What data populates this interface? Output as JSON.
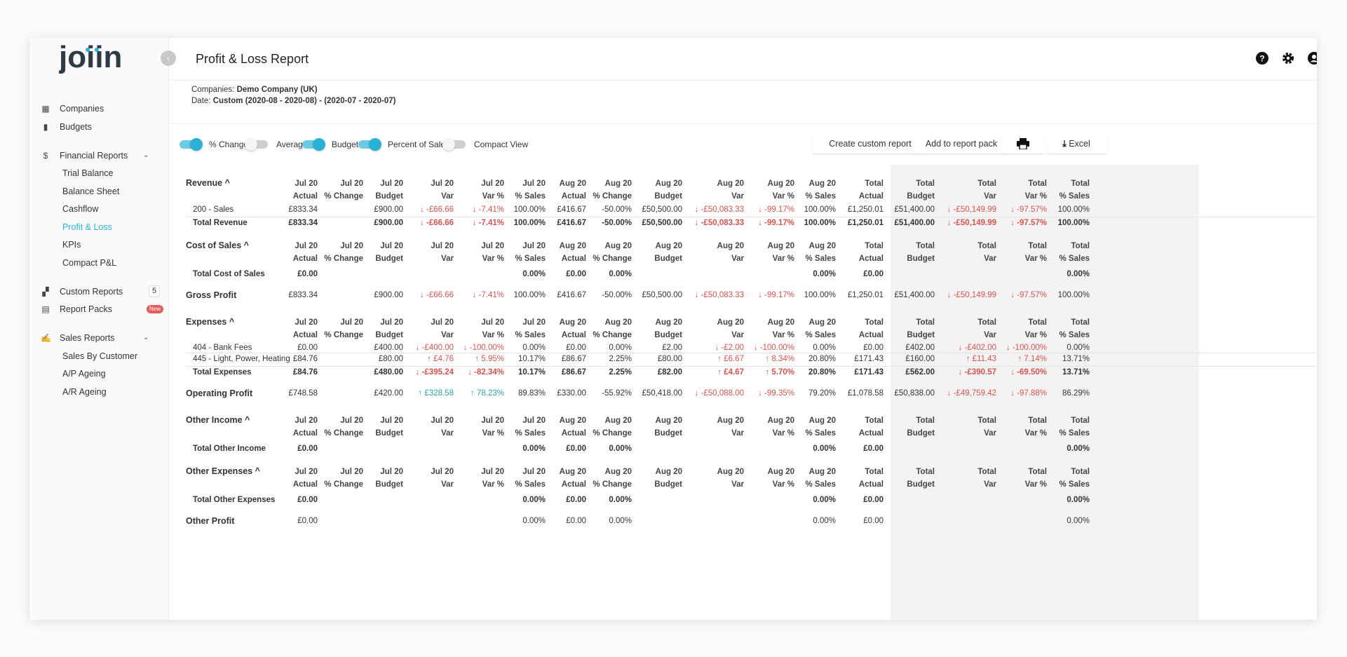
{
  "app": {
    "brand": "joiin",
    "title": "Profit & Loss Report",
    "companies_label": "Companies:",
    "companies_value": "Demo Company (UK)",
    "date_label": "Date:",
    "date_value": "Custom (2020-08 - 2020-08) - (2020-07 - 2020-07)"
  },
  "sidebar": {
    "companies": "Companies",
    "budgets": "Budgets",
    "financial_reports": "Financial Reports",
    "trial_balance": "Trial Balance",
    "balance_sheet": "Balance Sheet",
    "cashflow": "Cashflow",
    "profit_loss": "Profit & Loss",
    "kpis": "KPIs",
    "compact_pl": "Compact P&L",
    "custom_reports": "Custom Reports",
    "custom_reports_count": "5",
    "report_packs": "Report Packs",
    "report_packs_badge": "New",
    "sales_reports": "Sales Reports",
    "sales_by_customer": "Sales By Customer",
    "ap_ageing": "A/P Ageing",
    "ar_ageing": "A/R Ageing"
  },
  "toggles": [
    {
      "label": "% Change",
      "on": true
    },
    {
      "label": "Average",
      "on": false
    },
    {
      "label": "Budget",
      "on": true
    },
    {
      "label": "Percent of Sales",
      "on": true
    },
    {
      "label": "Compact View",
      "on": false
    }
  ],
  "actions": {
    "create_custom_report": "Create custom report",
    "add_to_report_pack": "Add to report pack",
    "excel": "Excel"
  },
  "columns": [
    [
      "Jul 20",
      "Actual"
    ],
    [
      "Jul 20",
      "% Change"
    ],
    [
      "Jul 20",
      "Budget"
    ],
    [
      "Jul 20",
      "Var"
    ],
    [
      "Jul 20",
      "Var %"
    ],
    [
      "Jul 20",
      "% Sales"
    ],
    [
      "Aug 20",
      "Actual"
    ],
    [
      "Aug 20",
      "% Change"
    ],
    [
      "Aug 20",
      "Budget"
    ],
    [
      "Aug 20",
      "Var"
    ],
    [
      "Aug 20",
      "Var %"
    ],
    [
      "Aug 20",
      "% Sales"
    ],
    [
      "Total",
      "Actual"
    ],
    [
      "Total",
      "Budget"
    ],
    [
      "Total",
      "Var"
    ],
    [
      "Total",
      "Var %"
    ],
    [
      "Total",
      "% Sales"
    ]
  ],
  "sections": {
    "revenue": "Revenue ^",
    "cost_of_sales": "Cost of Sales ^",
    "gross_profit": "Gross Profit",
    "expenses": "Expenses ^",
    "operating_profit": "Operating Profit",
    "other_income": "Other Income ^",
    "other_expenses": "Other Expenses ^",
    "other_profit": "Other Profit"
  },
  "rows": {
    "sales_200": {
      "label": "200 - Sales",
      "cells": [
        "£833.34",
        "",
        "£900.00",
        "↓ -£66.66",
        "↓ -7.41%",
        "100.00%",
        "£416.67",
        "-50.00%",
        "£50,500.00",
        "↓ -£50,083.33",
        "↓ -99.17%",
        "100.00%",
        "£1,250.01",
        "£51,400.00",
        "↓ -£50,149.99",
        "↓ -97.57%",
        "100.00%"
      ]
    },
    "total_revenue": {
      "label": "Total Revenue",
      "cells": [
        "£833.34",
        "",
        "£900.00",
        "↓ -£66.66",
        "↓ -7.41%",
        "100.00%",
        "£416.67",
        "-50.00%",
        "£50,500.00",
        "↓ -£50,083.33",
        "↓ -99.17%",
        "100.00%",
        "£1,250.01",
        "£51,400.00",
        "↓ -£50,149.99",
        "↓ -97.57%",
        "100.00%"
      ]
    },
    "total_cos": {
      "label": "Total Cost of Sales",
      "cells": [
        "£0.00",
        "",
        "",
        "",
        "",
        "0.00%",
        "£0.00",
        "0.00%",
        "",
        "",
        "",
        "0.00%",
        "£0.00",
        "",
        "",
        "",
        "0.00%"
      ]
    },
    "gross_profit": {
      "label": "",
      "cells": [
        "£833.34",
        "",
        "£900.00",
        "↓ -£66.66",
        "↓ -7.41%",
        "100.00%",
        "£416.67",
        "-50.00%",
        "£50,500.00",
        "↓ -£50,083.33",
        "↓ -99.17%",
        "100.00%",
        "£1,250.01",
        "£51,400.00",
        "↓ -£50,149.99",
        "↓ -97.57%",
        "100.00%"
      ]
    },
    "bank_fees": {
      "label": "404 - Bank Fees",
      "cells": [
        "£0.00",
        "",
        "£400.00",
        "↓ -£400.00",
        "↓ -100.00%",
        "0.00%",
        "£0.00",
        "0.00%",
        "£2.00",
        "↓ -£2.00",
        "↓ -100.00%",
        "0.00%",
        "£0.00",
        "£402.00",
        "↓ -£402.00",
        "↓ -100.00%",
        "0.00%"
      ]
    },
    "light_power": {
      "label": "445 - Light, Power, Heating",
      "cells": [
        "£84.76",
        "",
        "£80.00",
        "↑ £4.76",
        "↑ 5.95%",
        "10.17%",
        "£86.67",
        "2.25%",
        "£80.00",
        "↑ £6.67",
        "↑ 8.34%",
        "20.80%",
        "£171.43",
        "£160.00",
        "↑ £11.43",
        "↑ 7.14%",
        "13.71%"
      ]
    },
    "total_expenses": {
      "label": "Total Expenses",
      "cells": [
        "£84.76",
        "",
        "£480.00",
        "↓ -£395.24",
        "↓ -82.34%",
        "10.17%",
        "£86.67",
        "2.25%",
        "£82.00",
        "↑ £4.67",
        "↑ 5.70%",
        "20.80%",
        "£171.43",
        "£562.00",
        "↓ -£390.57",
        "↓ -69.50%",
        "13.71%"
      ]
    },
    "operating_profit": {
      "label": "",
      "cells": [
        "£748.58",
        "",
        "£420.00",
        "↑ £328.58",
        "↑ 78.23%",
        "89.83%",
        "£330.00",
        "-55.92%",
        "£50,418.00",
        "↓ -£50,088.00",
        "↓ -99.35%",
        "79.20%",
        "£1,078.58",
        "£50,838.00",
        "↓ -£49,759.42",
        "↓ -97.88%",
        "86.29%"
      ]
    },
    "total_other_income": {
      "label": "Total Other Income",
      "cells": [
        "£0.00",
        "",
        "",
        "",
        "",
        "0.00%",
        "£0.00",
        "0.00%",
        "",
        "",
        "",
        "0.00%",
        "£0.00",
        "",
        "",
        "",
        "0.00%"
      ]
    },
    "total_other_expenses": {
      "label": "Total Other Expenses",
      "cells": [
        "£0.00",
        "",
        "",
        "",
        "",
        "0.00%",
        "£0.00",
        "0.00%",
        "",
        "",
        "",
        "0.00%",
        "£0.00",
        "",
        "",
        "",
        "0.00%"
      ]
    },
    "other_profit": {
      "label": "",
      "cells": [
        "£0.00",
        "",
        "",
        "",
        "",
        "0.00%",
        "£0.00",
        "0.00%",
        "",
        "",
        "",
        "0.00%",
        "£0.00",
        "",
        "",
        "",
        "0.00%"
      ]
    }
  },
  "colors": {
    "accent": "#2bb1d6",
    "negative": "#d9534f",
    "positive": "#2aa5a0"
  }
}
